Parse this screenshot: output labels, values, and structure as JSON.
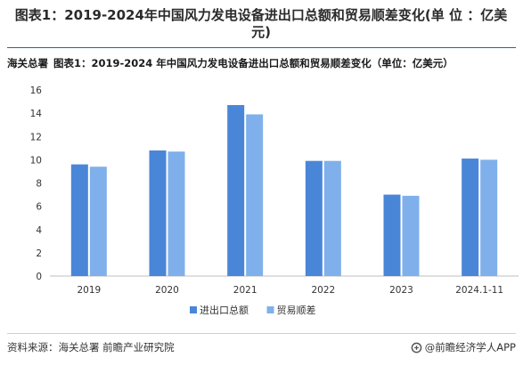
{
  "page_title": "图表1：2019-2024年中国风力发电设备进出口总额和贸易顺差变化(单 位 ：亿美元)",
  "chart_header": {
    "source_tag": "海关总署",
    "title": "图表1：2019-2024 年中国风力发电设备进出口总额和贸易顺差变化（单位：亿美元）"
  },
  "chart_data": {
    "type": "bar",
    "title": "图表1：2019-2024 年中国风力发电设备进出口总额和贸易顺差变化（单位：亿美元）",
    "categories": [
      "2019",
      "2020",
      "2021",
      "2022",
      "2023",
      "2024.1-11"
    ],
    "series": [
      {
        "name": "进出口总额",
        "color": "#4a86d8",
        "values": [
          9.6,
          10.8,
          14.7,
          9.9,
          7.0,
          10.1
        ]
      },
      {
        "name": "贸易顺差",
        "color": "#7fb0eb",
        "values": [
          9.4,
          10.7,
          13.9,
          9.9,
          6.9,
          10.0
        ]
      }
    ],
    "ylim": [
      0,
      16
    ],
    "yticks": [
      "0",
      "2",
      "4",
      "6",
      "8",
      "10",
      "12",
      "14",
      "16"
    ],
    "grid": false,
    "legend_position": "bottom-center"
  },
  "footer": {
    "source": "资料来源：海关总署 前瞻产业研究院",
    "brand": "@前瞻经济学人APP"
  },
  "colors": {
    "axis": "#bfbfbf",
    "title_rule": "#2f5f9e",
    "text": "#333333"
  }
}
